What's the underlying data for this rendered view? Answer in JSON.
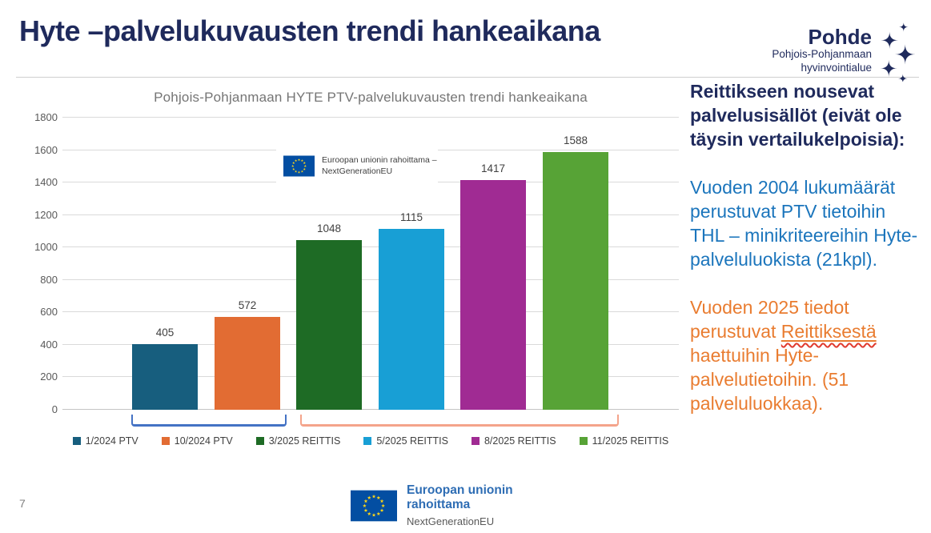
{
  "slide": {
    "title": "Hyte –palvelukuvausten trendi hankeaikana",
    "page_number": "7"
  },
  "pohde_logo": {
    "name": "Pohde",
    "subtitle1": "Pohjois-Pohjanmaan",
    "subtitle2": "hyvinvointialue"
  },
  "chart_data": {
    "type": "bar",
    "title": "Pohjois-Pohjanmaan HYTE PTV-palvelukuvausten trendi hankeaikana",
    "categories": [
      "1/2024 PTV",
      "10/2024 PTV",
      "3/2025 REITTIS",
      "5/2025 REITTIS",
      "8/2025 REITTIS",
      "11/2025 REITTIS"
    ],
    "values": [
      405,
      572,
      1048,
      1115,
      1417,
      1588
    ],
    "bar_colors": [
      "#175E7E",
      "#E26C33",
      "#1E6B25",
      "#189FD5",
      "#A02B93",
      "#57A336"
    ],
    "ylim": [
      0,
      1800
    ],
    "ytick_step": 200,
    "grid": true,
    "value_labels": true,
    "legend_position": "bottom",
    "group_annotations": [
      {
        "covers": [
          "1/2024 PTV",
          "10/2024 PTV"
        ],
        "color": "#4472C4"
      },
      {
        "covers": [
          "3/2025 REITTIS",
          "5/2025 REITTIS",
          "8/2025 REITTIS",
          "11/2025 REITTIS"
        ],
        "color": "#F4A48B"
      }
    ]
  },
  "chart_eu_badge": {
    "line1": "Euroopan unionin rahoittama –",
    "line2": "NextGenerationEU"
  },
  "right_panel": {
    "heading": "Reittikseen nousevat palvelusisällöt (eivät ole täysin vertailukelpoisia):",
    "blue_paragraph": "Vuoden 2004 lukumäärät perustuvat PTV tietoihin THL – minikriteereihin Hyte-palveluluokista (21kpl).",
    "orange_paragraph_start": "Vuoden 2025 tiedot perustuvat ",
    "orange_paragraph_underlined": "Reittiksestä",
    "orange_paragraph_end": " haettuihin Hyte-palvelutietoihin. (51 palveluluokkaa)."
  },
  "footer_eu_badge": {
    "line1": "Euroopan unionin",
    "line2": "rahoittama",
    "line3": "NextGenerationEU"
  },
  "colors": {
    "navy": "#1F2A5C",
    "blue_text": "#1B75BC",
    "orange_text": "#E97C30",
    "eu_flag_blue": "#034EA2",
    "eu_star_yellow": "#FFD617",
    "footer_blue": "#2E6DB4",
    "bracket_blue": "#4472C4",
    "bracket_salmon": "#F4A48B"
  }
}
